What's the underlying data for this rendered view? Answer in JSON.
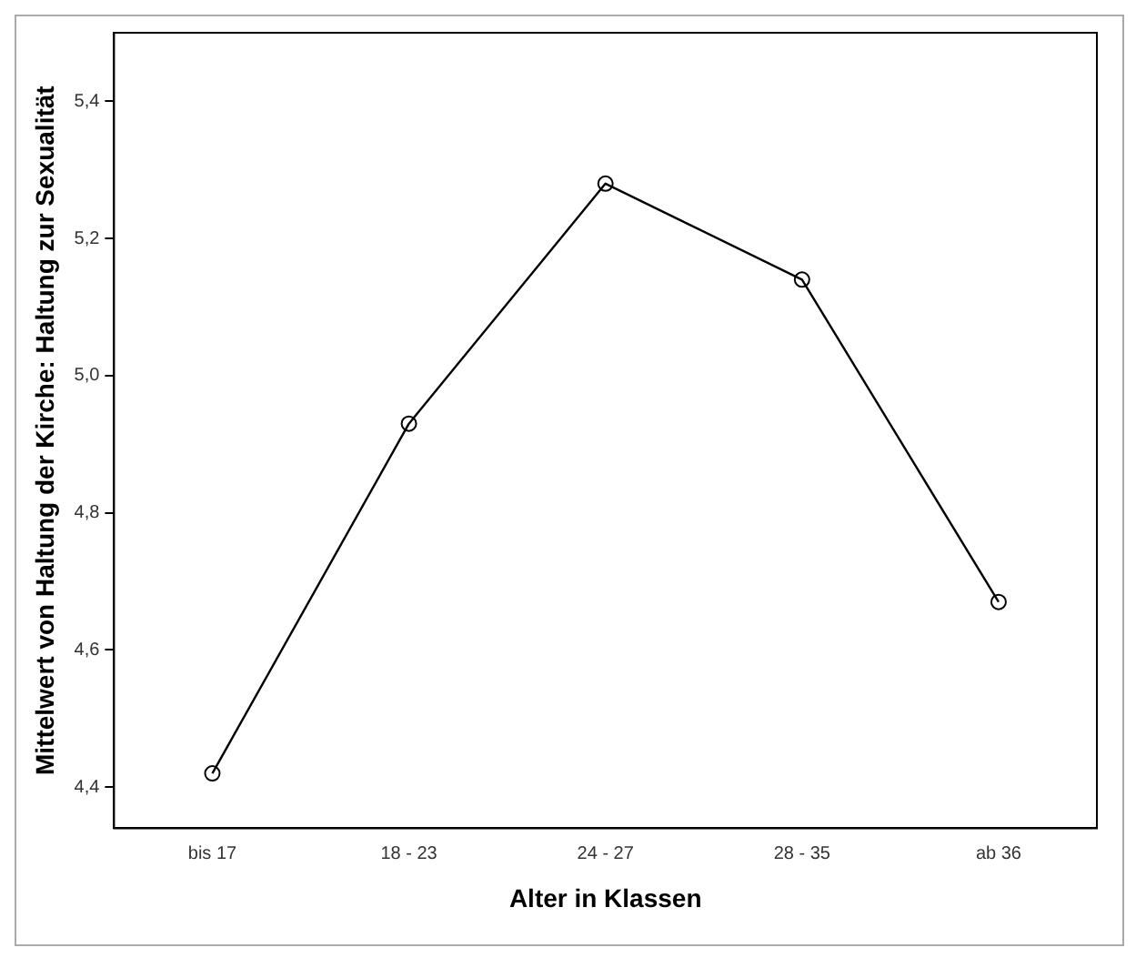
{
  "chart_data": {
    "type": "line",
    "xlabel": "Alter in Klassen",
    "ylabel": "Mittelwert von Haltung der Kirche: Haltung zur Sexualität",
    "categories": [
      "bis 17",
      "18 - 23",
      "24 - 27",
      "28 - 35",
      "ab 36"
    ],
    "series": [
      {
        "color": "#000000",
        "values": [
          4.42,
          4.93,
          5.28,
          5.14,
          4.67
        ]
      }
    ],
    "ylim": [
      4.34,
      5.5
    ],
    "yticks": [
      {
        "value": 4.4,
        "label": "4,4"
      },
      {
        "value": 4.6,
        "label": "4,6"
      },
      {
        "value": 4.8,
        "label": "4,8"
      },
      {
        "value": 5.0,
        "label": "5,0"
      },
      {
        "value": 5.2,
        "label": "5,2"
      },
      {
        "value": 5.4,
        "label": "5,4"
      }
    ],
    "grid": false,
    "legend": false,
    "marker": "circle",
    "line_style": "solid"
  }
}
